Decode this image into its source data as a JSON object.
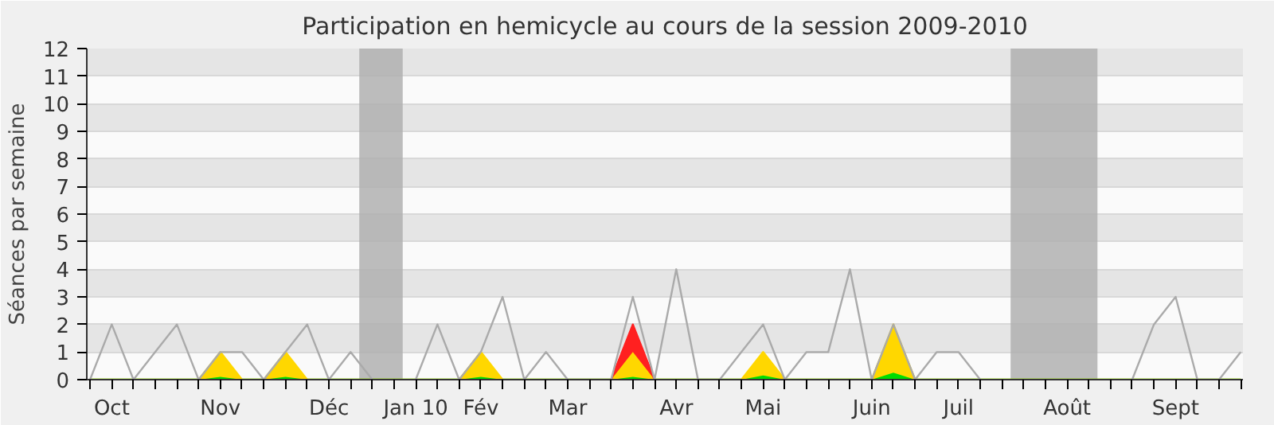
{
  "chart_data": {
    "type": "area",
    "title": "Participation en hemicycle au cours de la session 2009-2010",
    "ylabel": "Séances par semaine",
    "categories": [
      null,
      "Oct",
      null,
      null,
      null,
      null,
      "Nov",
      null,
      null,
      null,
      null,
      "Déc",
      null,
      null,
      null,
      "Jan 10",
      null,
      null,
      "Fév",
      null,
      null,
      null,
      "Mar",
      null,
      null,
      null,
      null,
      "Avr",
      null,
      null,
      null,
      "Mai",
      null,
      null,
      null,
      null,
      "Juin",
      null,
      null,
      null,
      "Juil",
      null,
      null,
      null,
      null,
      "Août",
      null,
      null,
      null,
      null,
      "Sept",
      null,
      null,
      null
    ],
    "series": [
      {
        "type": "line",
        "color": "#aaaaaa",
        "values": [
          0,
          2,
          0,
          1,
          2,
          0,
          1,
          1,
          0,
          1,
          2,
          0,
          1,
          0,
          null,
          0,
          2,
          0,
          1,
          3,
          0,
          1,
          0,
          0,
          0,
          3,
          0,
          4,
          0,
          0,
          1,
          2,
          0,
          1,
          1,
          4,
          0,
          2,
          0,
          1,
          1,
          0,
          null,
          null,
          null,
          null,
          null,
          null,
          0,
          2,
          3,
          0,
          0,
          1
        ]
      },
      {
        "color": "#00dd00",
        "values": [
          0,
          0,
          0,
          0,
          0,
          0,
          0.1,
          0,
          0,
          0.1,
          0,
          0,
          0,
          0,
          0,
          0,
          0,
          0,
          0.1,
          0,
          0,
          0,
          0,
          0,
          0,
          0.1,
          0,
          0,
          0,
          0,
          0,
          0.15,
          0,
          0,
          0,
          0,
          0,
          0.25,
          0,
          0,
          0,
          0,
          0,
          0,
          0,
          0,
          0,
          0,
          0,
          0,
          0,
          0,
          0,
          0
        ]
      },
      {
        "color": "#ffd700",
        "values": [
          0,
          0,
          0,
          0,
          0,
          0,
          0.9,
          0,
          0,
          0.9,
          0,
          0,
          0,
          0,
          0,
          0,
          0,
          0,
          0.9,
          0,
          0,
          0,
          0,
          0,
          0,
          0.9,
          0,
          0,
          0,
          0,
          0,
          0.85,
          0,
          0,
          0,
          0,
          0,
          1.75,
          0,
          0,
          0,
          0,
          0,
          0,
          0,
          0,
          0,
          0,
          0,
          0,
          0,
          0,
          0,
          0
        ]
      },
      {
        "color": "#ff2020",
        "values": [
          null,
          null,
          null,
          null,
          null,
          null,
          null,
          null,
          null,
          null,
          null,
          null,
          null,
          null,
          null,
          null,
          null,
          null,
          null,
          null,
          null,
          null,
          null,
          null,
          0,
          1,
          0,
          null,
          null,
          null,
          null,
          null,
          null,
          null,
          null,
          null,
          null,
          null,
          null,
          null,
          null,
          null,
          null,
          null,
          null,
          null,
          null,
          null,
          null,
          null,
          null,
          null,
          null,
          null
        ]
      }
    ],
    "stacked": true,
    "ylim": [
      0,
      12
    ],
    "yticks": [
      0,
      1,
      2,
      3,
      4,
      5,
      6,
      7,
      8,
      9,
      10,
      11,
      12
    ],
    "grid": "y"
  }
}
